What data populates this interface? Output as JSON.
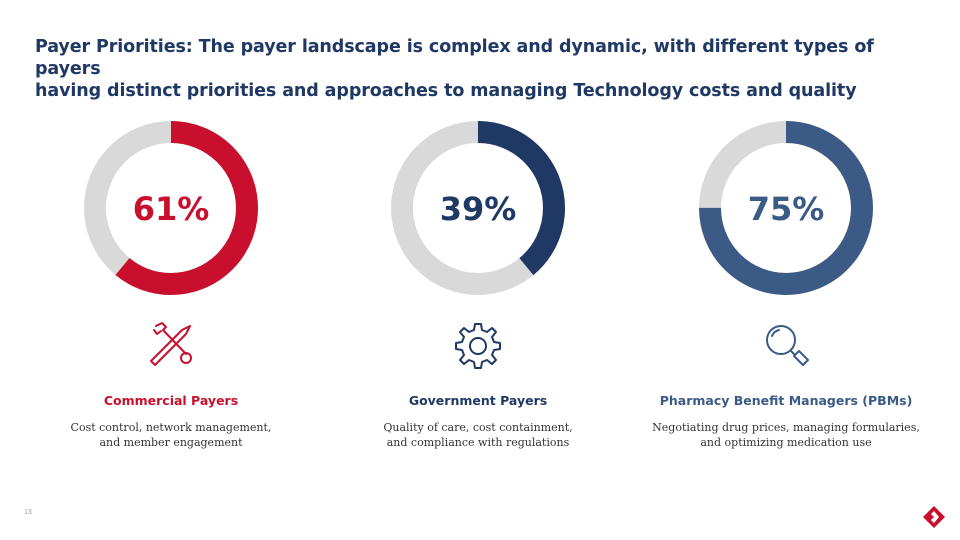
{
  "slide": {
    "title_line1": "Payer Priorities: The payer landscape is complex and dynamic, with different types of payers",
    "title_line2": "having distinct priorities and approaches to managing Technology costs and quality",
    "page_number": "13"
  },
  "colors": {
    "title": "#1f3864",
    "track": "#d9d9d9",
    "commercial": "#c8102e",
    "government": "#1f3864",
    "pbm": "#3b5a85"
  },
  "chart_data": [
    {
      "type": "pie",
      "variant": "donut",
      "value": 61,
      "max": 100,
      "center_label": "61%",
      "category": "Commercial Payers",
      "description_line1": "Cost control, network management,",
      "description_line2": "and member engagement",
      "color": "#c8102e",
      "icon": "tools-icon"
    },
    {
      "type": "pie",
      "variant": "donut",
      "value": 39,
      "max": 100,
      "center_label": "39%",
      "category": "Government Payers",
      "description_line1": "Quality of care, cost containment,",
      "description_line2": "and compliance with regulations",
      "color": "#1f3864",
      "icon": "gear-icon"
    },
    {
      "type": "pie",
      "variant": "donut",
      "value": 75,
      "max": 100,
      "center_label": "75%",
      "category": "Pharmacy Benefit Managers (PBMs)",
      "description_line1": "Negotiating drug prices, managing formularies,",
      "description_line2": "and optimizing medication use",
      "color": "#3b5a85",
      "icon": "magnifier-icon"
    }
  ]
}
